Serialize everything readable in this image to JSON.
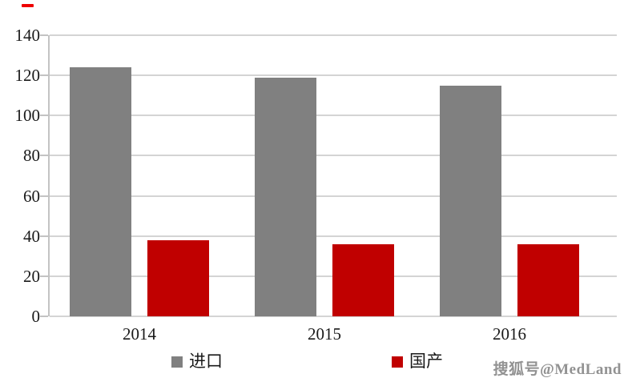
{
  "watermark": "搜狐号@MedLand",
  "chart_data": {
    "type": "bar",
    "title": "",
    "xlabel": "",
    "ylabel": "",
    "categories": [
      "2014",
      "2015",
      "2016"
    ],
    "series": [
      {
        "name": "进口",
        "slug": "import",
        "color": "#808080",
        "values": [
          124,
          119,
          115
        ]
      },
      {
        "name": "国产",
        "slug": "domestic",
        "color": "#c00000",
        "values": [
          38,
          36,
          36
        ]
      }
    ],
    "ylim": [
      0,
      140
    ],
    "y_ticks": [
      0,
      20,
      40,
      60,
      80,
      100,
      120,
      140
    ],
    "grid": true,
    "legend_position": "bottom",
    "colors": {
      "gridline": "#d4d4d4",
      "axis": "#c3c3c3",
      "text": "#1a1a1a",
      "watermark": "#929292",
      "top_left_dash": "#ee0000"
    }
  }
}
